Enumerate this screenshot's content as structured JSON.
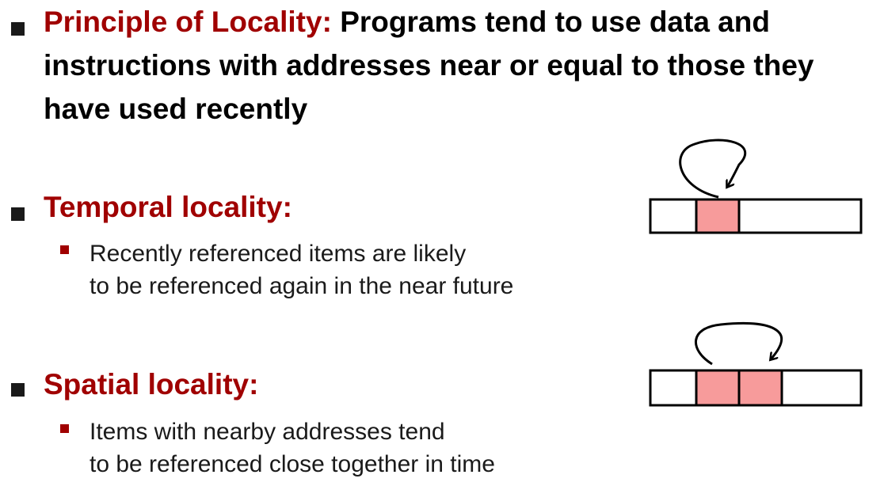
{
  "principle": {
    "term": "Principle of Locality:",
    "lines": [
      "Programs tend to use data and",
      "instructions with addresses near or equal to those they",
      "have used recently"
    ]
  },
  "temporal": {
    "heading": "Temporal locality:",
    "lines": [
      "Recently referenced items are likely",
      "to be referenced again in the near future"
    ]
  },
  "spatial": {
    "heading": "Spatial locality:",
    "lines": [
      "Items with nearby addresses tend",
      "to be referenced close together in time"
    ]
  },
  "colors": {
    "accent": "#a00000",
    "highlight_cell": "#f79b9b"
  }
}
